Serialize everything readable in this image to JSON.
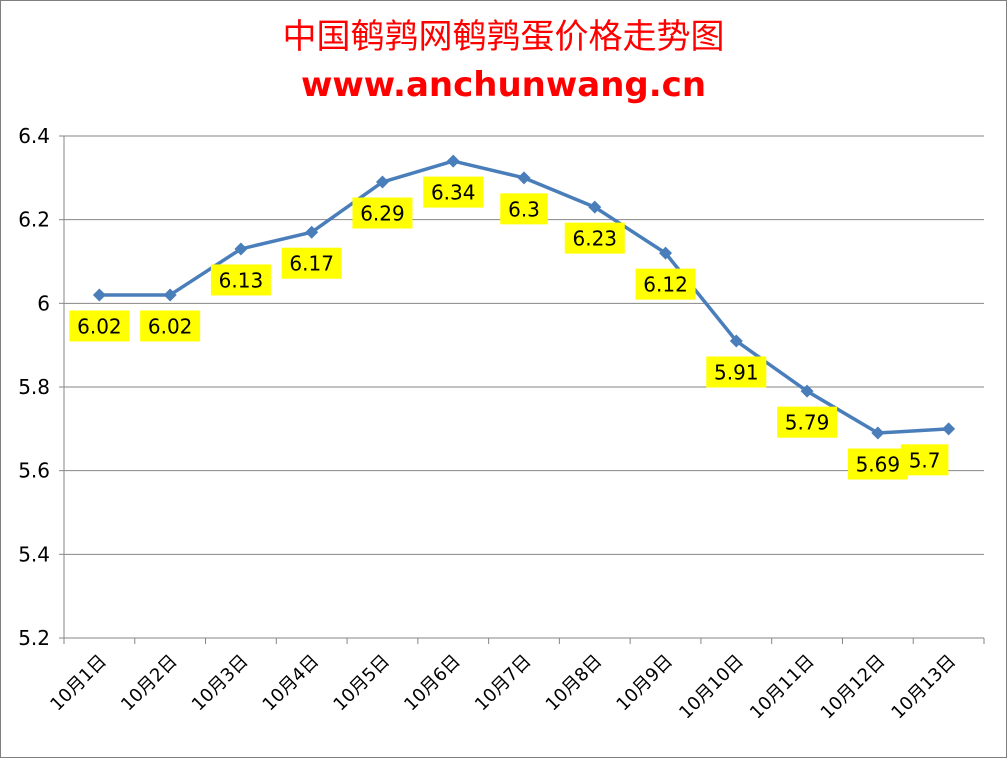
{
  "chart_data": {
    "type": "line",
    "title": "中国鹌鹑网鹌鹑蛋价格走势图",
    "subtitle": "www.anchunwang.cn",
    "categories": [
      "10月1日",
      "10月2日",
      "10月3日",
      "10月4日",
      "10月5日",
      "10月6日",
      "10月7日",
      "10月8日",
      "10月9日",
      "10月10日",
      "10月11日",
      "10月12日",
      "10月13日"
    ],
    "values": [
      6.02,
      6.02,
      6.13,
      6.17,
      6.29,
      6.34,
      6.3,
      6.23,
      6.12,
      5.91,
      5.79,
      5.69,
      5.7
    ],
    "data_labels": [
      "6.02",
      "6.02",
      "6.13",
      "6.17",
      "6.29",
      "6.34",
      "6.3",
      "6.23",
      "6.12",
      "5.91",
      "5.79",
      "5.69",
      "5.7"
    ],
    "yticks": [
      "5.2",
      "5.4",
      "5.6",
      "5.8",
      "6",
      "6.2",
      "6.4"
    ],
    "ylim": [
      5.2,
      6.4
    ],
    "xlabel": "",
    "ylabel": "",
    "grid": true,
    "legend": "none",
    "colors": {
      "line": "#4a7ebb",
      "marker": "#4a7ebb",
      "label_bg": "#ffff00",
      "title": "#ff0000",
      "grid": "#868686"
    }
  }
}
